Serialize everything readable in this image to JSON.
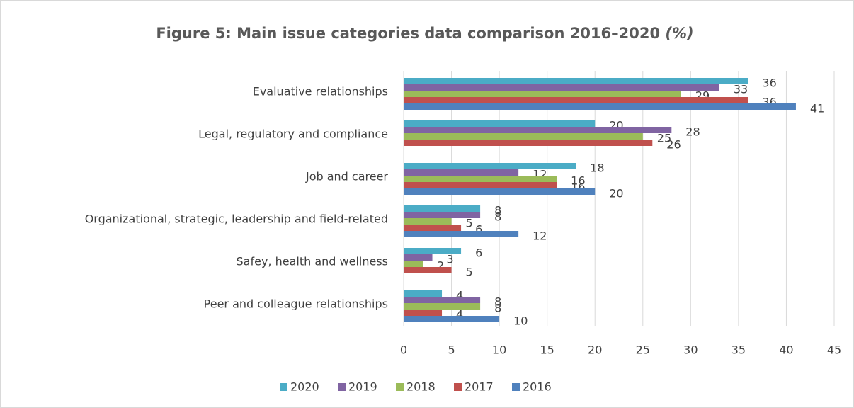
{
  "chart_data": {
    "type": "bar",
    "orientation": "horizontal",
    "title": "Figure 5: Main issue categories data comparison 2016–2020",
    "title_unit": "(%)",
    "categories": [
      "Evaluative relationships",
      "Legal, regulatory and compliance",
      "Job and career",
      "Organizational, strategic, leadership and field-related",
      "Safey, health and wellness",
      "Peer and colleague relationships"
    ],
    "series": [
      {
        "name": "2020",
        "color": "#4bacc6",
        "values": [
          36,
          20,
          18,
          8,
          6,
          4
        ]
      },
      {
        "name": "2019",
        "color": "#8064a2",
        "values": [
          33,
          28,
          12,
          8,
          3,
          8
        ]
      },
      {
        "name": "2018",
        "color": "#9bbb59",
        "values": [
          29,
          25,
          16,
          5,
          2,
          8
        ]
      },
      {
        "name": "2017",
        "color": "#c0504d",
        "values": [
          36,
          26,
          16,
          6,
          5,
          4
        ]
      },
      {
        "name": "2016",
        "color": "#4f81bd",
        "values": [
          41,
          null,
          20,
          12,
          null,
          10
        ]
      }
    ],
    "xlim": [
      0,
      45
    ],
    "xticks": [
      0,
      5,
      10,
      15,
      20,
      25,
      30,
      35,
      40,
      45
    ],
    "grid": true,
    "legend": "bottom"
  }
}
